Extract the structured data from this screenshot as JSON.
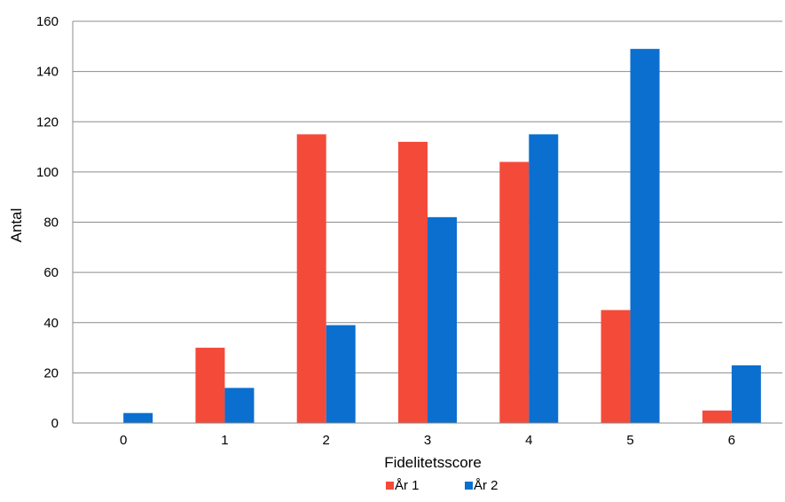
{
  "chart_data": {
    "type": "bar",
    "title": "",
    "xlabel": "Fidelitetsscore",
    "ylabel": "Antal",
    "categories": [
      "0",
      "1",
      "2",
      "3",
      "4",
      "5",
      "6"
    ],
    "series": [
      {
        "name": "År 1",
        "color": "#f44a3a",
        "values": [
          0,
          30,
          115,
          112,
          104,
          45,
          5
        ]
      },
      {
        "name": "År 2",
        "color": "#0a6fcf",
        "values": [
          4,
          14,
          39,
          82,
          115,
          149,
          23
        ]
      }
    ],
    "ylim": [
      0,
      160
    ],
    "yticks": [
      0,
      20,
      40,
      60,
      80,
      100,
      120,
      140,
      160
    ],
    "grid": true,
    "legend_position": "bottom"
  }
}
